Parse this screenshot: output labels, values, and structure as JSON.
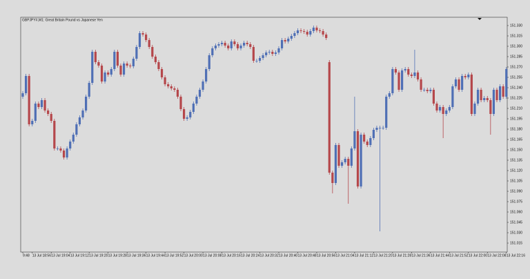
{
  "chart_data": {
    "type": "candlestick",
    "title": "GBPJPY#,M1:  Great Britain Pound vs Japanese Yen",
    "up_color": "#4f6fb5",
    "down_color": "#b5474b",
    "categories": [
      "9:48",
      null,
      null,
      "13 Jul 18:56",
      null,
      null,
      null,
      null,
      null,
      "13 Jul 19:04",
      null,
      null,
      null,
      null,
      null,
      "13 Jul 19:12",
      null,
      null,
      null,
      null,
      null,
      "13 Jul 19:20",
      null,
      null,
      null,
      null,
      null,
      "13 Jul 19:28",
      null,
      null,
      null,
      null,
      null,
      "13 Jul 19:36",
      null,
      null,
      null,
      null,
      null,
      "13 Jul 19:44",
      null,
      null,
      null,
      null,
      null,
      "13 Jul 19:52",
      null,
      null,
      null,
      null,
      null,
      "13 Jul 20:00",
      null,
      null,
      null,
      null,
      null,
      "13 Jul 20:08",
      null,
      null,
      null,
      null,
      null,
      "13 Jul 20:16",
      null,
      null,
      null,
      null,
      null,
      "13 Jul 20:24",
      null,
      null,
      null,
      null,
      null,
      "13 Jul 20:32",
      null,
      null,
      null,
      null,
      null,
      "13 Jul 20:40",
      null,
      null,
      null,
      null,
      null,
      "13 Jul 20:48",
      null,
      null,
      null,
      null,
      null,
      "13 Jul 20:56",
      null,
      null,
      null,
      null,
      null,
      "13 Jul 21:04",
      null,
      null,
      null,
      null,
      null,
      "13 Jul 21:12",
      null,
      null,
      null,
      null,
      null,
      "13 Jul 21:20",
      null,
      null,
      null,
      null,
      null,
      "13 Jul 21:28",
      null,
      null,
      null,
      null,
      null,
      "13 Jul 21:36",
      null,
      null,
      null,
      null,
      null,
      "13 Jul 21:44",
      null,
      null,
      null,
      null,
      null,
      "13 Jul 21:52",
      null,
      null,
      null,
      null,
      null,
      "13 Jul 22:00",
      null,
      null,
      null,
      null,
      null,
      "13 Jul 22:08",
      null,
      null,
      null,
      null,
      null,
      "13 Jul 22:16"
    ],
    "open": [
      151.227,
      151.232,
      151.257,
      151.187,
      151.192,
      151.217,
      151.212,
      151.222,
      151.207,
      151.202,
      151.192,
      151.152,
      151.152,
      151.149,
      151.139,
      151.152,
      151.162,
      151.172,
      151.187,
      151.197,
      151.207,
      151.227,
      151.247,
      151.292,
      151.277,
      151.272,
      151.249,
      151.262,
      151.259,
      151.267,
      151.292,
      151.272,
      151.259,
      151.275,
      151.272,
      151.271,
      151.282,
      151.299,
      151.319,
      151.317,
      151.309,
      151.299,
      151.285,
      151.277,
      151.267,
      151.255,
      151.245,
      151.242,
      151.239,
      151.237,
      151.227,
      151.209,
      151.195,
      151.197,
      151.205,
      151.217,
      151.227,
      151.237,
      151.249,
      151.267,
      151.287,
      151.297,
      151.301,
      151.303,
      151.305,
      151.301,
      151.297,
      151.307,
      151.303,
      151.297,
      151.301,
      151.305,
      151.303,
      151.299,
      151.279,
      151.279,
      151.283,
      151.287,
      151.291,
      151.292,
      151.289,
      151.291,
      151.297,
      151.309,
      151.307,
      151.311,
      151.315,
      151.319,
      151.323,
      151.322,
      151.321,
      151.317,
      151.322,
      151.327,
      151.323,
      151.322,
      151.317,
      151.277,
      151.117,
      151.102,
      151.157,
      151.127,
      151.132,
      151.137,
      151.127,
      151.152,
      151.177,
      151.097,
      151.172,
      151.162,
      151.157,
      151.167,
      151.179,
      151.182,
      151.182,
      151.182,
      151.227,
      151.232,
      151.267,
      151.262,
      151.237,
      151.265,
      151.267,
      151.259,
      151.257,
      151.262,
      151.252,
      151.237,
      151.237,
      151.235,
      151.237,
      151.217,
      151.207,
      151.212,
      151.202,
      151.207,
      151.212,
      151.242,
      151.252,
      151.237,
      151.257,
      151.255,
      151.259,
      151.202,
      151.217,
      151.237,
      151.222,
      151.225,
      151.222,
      151.202,
      151.237,
      151.222,
      151.242,
      151.227
    ],
    "high": [
      151.235,
      151.26,
      151.26,
      151.195,
      151.22,
      151.22,
      151.225,
      151.225,
      151.21,
      151.205,
      151.195,
      151.155,
      151.155,
      151.152,
      151.155,
      151.165,
      151.175,
      151.19,
      151.2,
      151.21,
      151.23,
      151.25,
      151.295,
      151.295,
      151.28,
      151.275,
      151.265,
      151.265,
      151.27,
      151.295,
      151.295,
      151.275,
      151.278,
      151.278,
      151.275,
      151.285,
      151.302,
      151.322,
      151.322,
      151.32,
      151.312,
      151.302,
      151.288,
      151.28,
      151.27,
      151.258,
      151.248,
      151.245,
      151.242,
      151.24,
      151.23,
      151.212,
      151.2,
      151.208,
      151.22,
      151.23,
      151.24,
      151.252,
      151.27,
      151.29,
      151.3,
      151.304,
      151.306,
      151.308,
      151.308,
      151.304,
      151.31,
      151.31,
      151.306,
      151.304,
      151.308,
      151.308,
      151.306,
      151.302,
      151.282,
      151.286,
      151.29,
      151.294,
      151.295,
      151.295,
      151.294,
      151.3,
      151.312,
      151.312,
      151.314,
      151.318,
      151.322,
      151.326,
      151.326,
      151.325,
      151.324,
      151.325,
      151.33,
      151.33,
      151.326,
      151.325,
      151.32,
      151.28,
      151.12,
      151.16,
      151.16,
      151.135,
      151.14,
      151.14,
      151.155,
      151.227,
      151.18,
      151.175,
      151.175,
      151.165,
      151.17,
      151.182,
      151.185,
      151.185,
      151.185,
      151.23,
      151.235,
      151.27,
      151.27,
      151.265,
      151.268,
      151.27,
      151.27,
      151.262,
      151.295,
      151.265,
      151.255,
      151.24,
      151.24,
      151.24,
      151.24,
      151.22,
      151.215,
      151.215,
      151.21,
      151.215,
      151.245,
      151.255,
      151.255,
      151.26,
      151.26,
      151.262,
      151.262,
      151.22,
      151.24,
      151.24,
      151.228,
      151.228,
      151.225,
      151.24,
      151.24,
      151.245,
      151.245,
      151.27
    ],
    "low": [
      151.224,
      151.229,
      151.184,
      151.184,
      151.189,
      151.209,
      151.209,
      151.204,
      151.199,
      151.189,
      151.149,
      151.149,
      151.146,
      151.136,
      151.136,
      151.149,
      151.159,
      151.169,
      151.184,
      151.194,
      151.204,
      151.224,
      151.244,
      151.274,
      151.269,
      151.246,
      151.246,
      151.256,
      151.256,
      151.264,
      151.269,
      151.256,
      151.256,
      151.269,
      151.268,
      151.268,
      151.279,
      151.296,
      151.314,
      151.306,
      151.296,
      151.282,
      151.274,
      151.264,
      151.252,
      151.242,
      151.239,
      151.236,
      151.234,
      151.224,
      151.206,
      151.192,
      151.192,
      151.194,
      151.202,
      151.214,
      151.224,
      151.234,
      151.246,
      151.264,
      151.284,
      151.294,
      151.298,
      151.3,
      151.298,
      151.294,
      151.294,
      151.3,
      151.294,
      151.294,
      151.298,
      151.3,
      151.296,
      151.276,
      151.276,
      151.276,
      151.28,
      151.284,
      151.288,
      151.286,
      151.286,
      151.288,
      151.294,
      151.304,
      151.304,
      151.308,
      151.312,
      151.316,
      151.319,
      151.318,
      151.314,
      151.314,
      151.319,
      151.32,
      151.319,
      151.314,
      151.309,
      151.114,
      151.087,
      151.099,
      151.124,
      151.124,
      151.129,
      151.072,
      151.124,
      151.149,
      151.094,
      151.094,
      151.159,
      151.154,
      151.154,
      151.164,
      151.176,
      151.032,
      151.179,
      151.179,
      151.224,
      151.229,
      151.259,
      151.234,
      151.234,
      151.262,
      151.256,
      151.254,
      151.254,
      151.249,
      151.234,
      151.234,
      151.232,
      151.232,
      151.214,
      151.204,
      151.204,
      151.167,
      151.199,
      151.204,
      151.209,
      151.239,
      151.234,
      151.234,
      151.252,
      151.252,
      151.199,
      151.199,
      151.214,
      151.219,
      151.219,
      151.219,
      151.172,
      151.199,
      151.219,
      151.219,
      151.224,
      151.224
    ],
    "close": [
      151.232,
      151.257,
      151.187,
      151.192,
      151.217,
      151.212,
      151.222,
      151.207,
      151.202,
      151.192,
      151.152,
      151.152,
      151.149,
      151.139,
      151.152,
      151.162,
      151.172,
      151.187,
      151.197,
      151.207,
      151.227,
      151.247,
      151.292,
      151.277,
      151.272,
      151.249,
      151.262,
      151.259,
      151.267,
      151.292,
      151.272,
      151.259,
      151.275,
      151.272,
      151.271,
      151.282,
      151.299,
      151.319,
      151.317,
      151.309,
      151.299,
      151.285,
      151.277,
      151.267,
      151.255,
      151.245,
      151.242,
      151.239,
      151.237,
      151.227,
      151.209,
      151.195,
      151.197,
      151.205,
      151.217,
      151.227,
      151.237,
      151.249,
      151.267,
      151.287,
      151.297,
      151.301,
      151.303,
      151.305,
      151.301,
      151.297,
      151.307,
      151.303,
      151.297,
      151.301,
      151.305,
      151.303,
      151.299,
      151.279,
      151.279,
      151.283,
      151.287,
      151.291,
      151.292,
      151.289,
      151.291,
      151.297,
      151.309,
      151.307,
      151.311,
      151.315,
      151.319,
      151.323,
      151.322,
      151.321,
      151.317,
      151.322,
      151.327,
      151.323,
      151.322,
      151.317,
      151.312,
      151.117,
      151.102,
      151.157,
      151.127,
      151.132,
      151.137,
      151.127,
      151.152,
      151.177,
      151.097,
      151.172,
      151.162,
      151.157,
      151.167,
      151.179,
      151.182,
      151.182,
      151.182,
      151.227,
      151.232,
      151.267,
      151.262,
      151.237,
      151.265,
      151.267,
      151.259,
      151.257,
      151.262,
      151.252,
      151.237,
      151.237,
      151.235,
      151.237,
      151.217,
      151.207,
      151.212,
      151.202,
      151.207,
      151.212,
      151.242,
      151.252,
      151.237,
      151.257,
      151.255,
      151.259,
      151.202,
      151.217,
      151.237,
      151.222,
      151.225,
      151.222,
      151.202,
      151.237,
      151.222,
      151.242,
      151.227,
      151.267
    ],
    "ylim": [
      151.002,
      151.342
    ],
    "yticks": [
      {
        "value": 151.33,
        "label": "151.330"
      },
      151.315,
      {
        "value": 151.3,
        "label": "151.300"
      },
      151.285,
      {
        "value": 151.27,
        "label": "151.270"
      },
      151.255,
      {
        "value": 151.24,
        "label": "151.240"
      },
      151.225,
      {
        "value": 151.21,
        "label": "151.210"
      },
      151.195,
      {
        "value": 151.18,
        "label": "151.180"
      },
      151.165,
      {
        "value": 151.15,
        "label": "151.150"
      },
      151.135,
      {
        "value": 151.12,
        "label": "151.120"
      },
      151.105,
      {
        "value": 151.09,
        "label": "151.090"
      },
      151.075,
      {
        "value": 151.06,
        "label": "151.060"
      },
      151.045,
      {
        "value": 151.03,
        "label": "151.030"
      },
      151.015
    ]
  }
}
